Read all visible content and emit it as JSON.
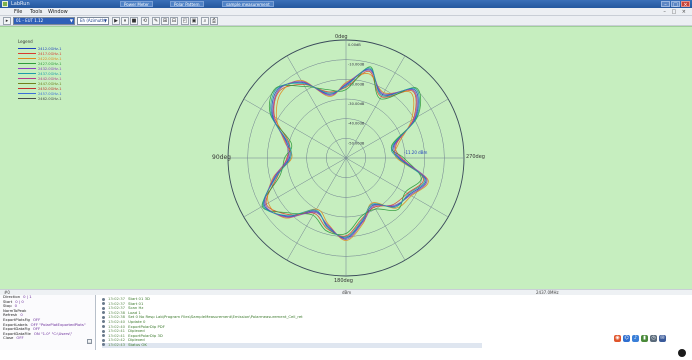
{
  "window": {
    "title": "LabRun",
    "tasks": [
      "Power Meter",
      "Polar Pattern",
      "sample measurement"
    ],
    "controls": [
      "–",
      "□",
      "×"
    ]
  },
  "menu": [
    "File",
    "Tools",
    "Window"
  ],
  "menu_right": "– □ ×",
  "toolbar": {
    "project_select": "01 - EUT 1.12",
    "mode_select": "Eh (Azimuth)",
    "buttons": [
      "▶",
      "⏸",
      "■",
      "⟲",
      "✎",
      "⊞",
      "⊟",
      "◰",
      "▣",
      "⌕",
      "⎙"
    ]
  },
  "legend": {
    "title": "Legend",
    "items": [
      {
        "label": "2412.0GHz-1",
        "color": "#1f3fbf"
      },
      {
        "label": "2417.0GHz-1",
        "color": "#d83a2f"
      },
      {
        "label": "2422.0GHz-1",
        "color": "#e08a1e"
      },
      {
        "label": "2427.0GHz-1",
        "color": "#2f9a3a"
      },
      {
        "label": "2432.0GHz-1",
        "color": "#8a3fc0"
      },
      {
        "label": "2437.0GHz-1",
        "color": "#1c9aa8"
      },
      {
        "label": "2442.0GHz-1",
        "color": "#b53b8a"
      },
      {
        "label": "2447.0GHz-1",
        "color": "#6f7f1c"
      },
      {
        "label": "2452.0GHz-1",
        "color": "#c03030"
      },
      {
        "label": "2457.0GHz-1",
        "color": "#3a6fd8"
      },
      {
        "label": "2462.0GHz-1",
        "color": "#4a4a4a"
      }
    ]
  },
  "chart_data": {
    "type": "polar",
    "angle_labels": {
      "top": "0deg",
      "right": "270deg",
      "bottom": "180deg",
      "left": "90deg"
    },
    "left_label": "90deg",
    "radial_ticks": [
      "0.00dB",
      "-10.00dB",
      "-20.00dB",
      "-30.00dB",
      "-40.00dB",
      "-50.00dB"
    ],
    "marker_label": "-11.20 dBm",
    "angles_deg": [
      0,
      15,
      30,
      45,
      60,
      75,
      90,
      105,
      120,
      135,
      150,
      165,
      180,
      195,
      210,
      225,
      240,
      255,
      270,
      285,
      300,
      315,
      330,
      345
    ],
    "series": [
      {
        "name": "2412.0GHz-1",
        "r": [
          0.62,
          0.78,
          0.62,
          0.82,
          0.68,
          0.42,
          0.45,
          0.7,
          0.62,
          0.58,
          0.46,
          0.55,
          0.68,
          0.6,
          0.52,
          0.7,
          0.8,
          0.62,
          0.48,
          0.52,
          0.72,
          0.82,
          0.74,
          0.56
        ]
      },
      {
        "name": "2417.0GHz-1",
        "r": [
          0.6,
          0.76,
          0.6,
          0.8,
          0.66,
          0.44,
          0.47,
          0.68,
          0.6,
          0.56,
          0.48,
          0.53,
          0.66,
          0.62,
          0.54,
          0.68,
          0.78,
          0.6,
          0.5,
          0.5,
          0.7,
          0.8,
          0.72,
          0.58
        ]
      },
      {
        "name": "2422.0GHz-1",
        "r": [
          0.64,
          0.74,
          0.64,
          0.78,
          0.64,
          0.46,
          0.43,
          0.72,
          0.64,
          0.6,
          0.44,
          0.57,
          0.7,
          0.58,
          0.5,
          0.72,
          0.76,
          0.64,
          0.46,
          0.54,
          0.68,
          0.78,
          0.76,
          0.54
        ]
      },
      {
        "name": "2427.0GHz-1",
        "r": [
          0.58,
          0.8,
          0.58,
          0.84,
          0.7,
          0.4,
          0.49,
          0.66,
          0.58,
          0.62,
          0.5,
          0.51,
          0.64,
          0.64,
          0.56,
          0.66,
          0.82,
          0.58,
          0.52,
          0.48,
          0.74,
          0.84,
          0.7,
          0.6
        ]
      },
      {
        "name": "2432.0GHz-1",
        "r": [
          0.63,
          0.77,
          0.63,
          0.81,
          0.67,
          0.43,
          0.46,
          0.71,
          0.63,
          0.57,
          0.47,
          0.56,
          0.69,
          0.59,
          0.53,
          0.71,
          0.79,
          0.63,
          0.49,
          0.53,
          0.71,
          0.81,
          0.75,
          0.55
        ]
      },
      {
        "name": "2437.0GHz-1",
        "r": [
          0.61,
          0.79,
          0.61,
          0.83,
          0.69,
          0.41,
          0.44,
          0.69,
          0.61,
          0.59,
          0.45,
          0.54,
          0.67,
          0.61,
          0.51,
          0.69,
          0.81,
          0.61,
          0.47,
          0.51,
          0.73,
          0.83,
          0.73,
          0.57
        ]
      }
    ]
  },
  "status_bar": {
    "left": "#0",
    "middle": "dBm",
    "right": "2437.0MHz"
  },
  "properties": [
    {
      "k": "Direction",
      "v": "0 | 1"
    },
    {
      "k": "Start",
      "v": "0 | 0"
    },
    {
      "k": "Stop",
      "v": "0"
    },
    {
      "k": "NormToPeak",
      "v": ""
    },
    {
      "k": "Refresh",
      "v": "0"
    },
    {
      "k": "ExportPlotsFig",
      "v": "OFF"
    },
    {
      "k": "ExportLabels",
      "v": "OFF  \"PolarPlotExportedPlots\""
    },
    {
      "k": "ExportDataFig",
      "v": "OFF"
    },
    {
      "k": "ExportDataFile",
      "v": "ON  \"1.0\"  \"C:\\Users\\\""
    },
    {
      "k": "Close",
      "v": "OFF"
    }
  ],
  "log": [
    {
      "t": "13:02:37",
      "m": "Start 01 3D"
    },
    {
      "t": "13:02:37",
      "m": "Start 01"
    },
    {
      "t": "13:02:37",
      "m": "Scan Hz"
    },
    {
      "t": "13:02:38",
      "m": "Load 1"
    },
    {
      "t": "13:02:38",
      "m": "Set 0  No Resp  Lab\\Program Files\\SampleMeasurement\\Emission\\Polarmeasurement_Cell_ret"
    },
    {
      "t": "13:02:40",
      "m": "Update 0"
    },
    {
      "t": "13:02:40",
      "m": "ExportPolarDip PDF"
    },
    {
      "t": "13:02:41",
      "m": "Diplexed"
    },
    {
      "t": "13:02:41",
      "m": "ExportPolarDip 3D"
    },
    {
      "t": "13:02:42",
      "m": "Diplexed"
    },
    {
      "t": "13:02:43",
      "m": "Status OK"
    }
  ],
  "tray_icons": [
    {
      "name": "app-launcher-icon",
      "color": "#e0552b",
      "glyph": "◉"
    },
    {
      "name": "network-icon",
      "color": "#2f6fd0",
      "glyph": "⌬"
    },
    {
      "name": "volume-icon",
      "color": "#3a7fd8",
      "glyph": "♪"
    },
    {
      "name": "battery-icon",
      "color": "#4a8a3a",
      "glyph": "▮"
    },
    {
      "name": "clock-icon",
      "color": "#5a6a7a",
      "glyph": "◷"
    },
    {
      "name": "notification-icon",
      "color": "#3a5a9a",
      "glyph": "✉"
    }
  ]
}
